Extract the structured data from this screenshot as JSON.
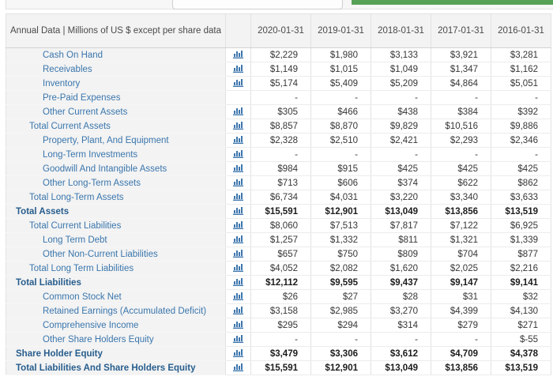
{
  "topbar": {
    "button_color": "#57a257"
  },
  "table": {
    "header": {
      "label": "Annual Data | Millions of US $ except per share data",
      "columns": [
        "2020-01-31",
        "2019-01-31",
        "2018-01-31",
        "2017-01-31",
        "2016-01-31"
      ]
    },
    "rows": [
      {
        "label": "Cash On Hand",
        "indent": 2,
        "bold": false,
        "chart_icon": true,
        "values": [
          "$2,229",
          "$1,980",
          "$3,133",
          "$3,921",
          "$3,281"
        ]
      },
      {
        "label": "Receivables",
        "indent": 2,
        "bold": false,
        "chart_icon": true,
        "values": [
          "$1,149",
          "$1,015",
          "$1,049",
          "$1,347",
          "$1,162"
        ]
      },
      {
        "label": "Inventory",
        "indent": 2,
        "bold": false,
        "chart_icon": true,
        "values": [
          "$5,174",
          "$5,409",
          "$5,209",
          "$4,864",
          "$5,051"
        ]
      },
      {
        "label": "Pre-Paid Expenses",
        "indent": 2,
        "bold": false,
        "chart_icon": false,
        "values": [
          "-",
          "-",
          "-",
          "-",
          "-"
        ]
      },
      {
        "label": "Other Current Assets",
        "indent": 2,
        "bold": false,
        "chart_icon": true,
        "values": [
          "$305",
          "$466",
          "$438",
          "$384",
          "$392"
        ]
      },
      {
        "label": "Total Current Assets",
        "indent": 1,
        "bold": false,
        "chart_icon": true,
        "values": [
          "$8,857",
          "$8,870",
          "$9,829",
          "$10,516",
          "$9,886"
        ]
      },
      {
        "label": "Property, Plant, And Equipment",
        "indent": 2,
        "bold": false,
        "chart_icon": true,
        "values": [
          "$2,328",
          "$2,510",
          "$2,421",
          "$2,293",
          "$2,346"
        ]
      },
      {
        "label": "Long-Term Investments",
        "indent": 2,
        "bold": false,
        "chart_icon": true,
        "values": [
          "-",
          "-",
          "-",
          "-",
          "-"
        ]
      },
      {
        "label": "Goodwill And Intangible Assets",
        "indent": 2,
        "bold": false,
        "chart_icon": true,
        "values": [
          "$984",
          "$915",
          "$425",
          "$425",
          "$425"
        ]
      },
      {
        "label": "Other Long-Term Assets",
        "indent": 2,
        "bold": false,
        "chart_icon": true,
        "values": [
          "$713",
          "$606",
          "$374",
          "$622",
          "$862"
        ]
      },
      {
        "label": "Total Long-Term Assets",
        "indent": 1,
        "bold": false,
        "chart_icon": true,
        "values": [
          "$6,734",
          "$4,031",
          "$3,220",
          "$3,340",
          "$3,633"
        ]
      },
      {
        "label": "Total Assets",
        "indent": 0,
        "bold": true,
        "chart_icon": true,
        "values": [
          "$15,591",
          "$12,901",
          "$13,049",
          "$13,856",
          "$13,519"
        ]
      },
      {
        "label": "Total Current Liabilities",
        "indent": 1,
        "bold": false,
        "chart_icon": true,
        "values": [
          "$8,060",
          "$7,513",
          "$7,817",
          "$7,122",
          "$6,925"
        ]
      },
      {
        "label": "Long Term Debt",
        "indent": 2,
        "bold": false,
        "chart_icon": true,
        "values": [
          "$1,257",
          "$1,332",
          "$811",
          "$1,321",
          "$1,339"
        ]
      },
      {
        "label": "Other Non-Current Liabilities",
        "indent": 2,
        "bold": false,
        "chart_icon": true,
        "values": [
          "$657",
          "$750",
          "$809",
          "$704",
          "$877"
        ]
      },
      {
        "label": "Total Long Term Liabilities",
        "indent": 1,
        "bold": false,
        "chart_icon": true,
        "values": [
          "$4,052",
          "$2,082",
          "$1,620",
          "$2,025",
          "$2,216"
        ]
      },
      {
        "label": "Total Liabilities",
        "indent": 0,
        "bold": true,
        "chart_icon": true,
        "values": [
          "$12,112",
          "$9,595",
          "$9,437",
          "$9,147",
          "$9,141"
        ]
      },
      {
        "label": "Common Stock Net",
        "indent": 2,
        "bold": false,
        "chart_icon": true,
        "values": [
          "$26",
          "$27",
          "$28",
          "$31",
          "$32"
        ]
      },
      {
        "label": "Retained Earnings (Accumulated Deficit)",
        "indent": 2,
        "bold": false,
        "chart_icon": true,
        "values": [
          "$3,158",
          "$2,985",
          "$3,270",
          "$4,399",
          "$4,130"
        ]
      },
      {
        "label": "Comprehensive Income",
        "indent": 2,
        "bold": false,
        "chart_icon": true,
        "values": [
          "$295",
          "$294",
          "$314",
          "$279",
          "$271"
        ]
      },
      {
        "label": "Other Share Holders Equity",
        "indent": 2,
        "bold": false,
        "chart_icon": true,
        "values": [
          "-",
          "-",
          "-",
          "-",
          "$-55"
        ]
      },
      {
        "label": "Share Holder Equity",
        "indent": 0,
        "bold": true,
        "chart_icon": true,
        "values": [
          "$3,479",
          "$3,306",
          "$3,612",
          "$4,709",
          "$4,378"
        ]
      },
      {
        "label": "Total Liabilities And Share Holders Equity",
        "indent": 0,
        "bold": true,
        "chart_icon": true,
        "values": [
          "$15,591",
          "$12,901",
          "$13,049",
          "$13,856",
          "$13,519"
        ]
      }
    ]
  }
}
